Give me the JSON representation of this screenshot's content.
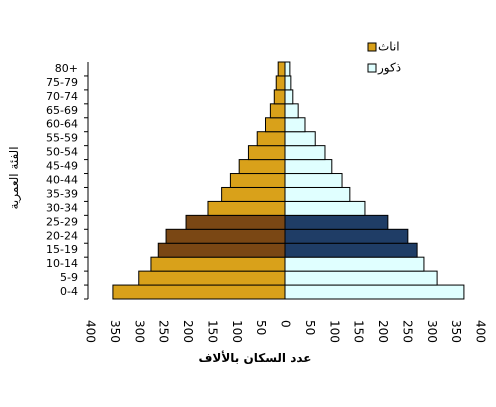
{
  "chart_data": {
    "type": "pyramid",
    "x_label": "عدد السكان بالألاف",
    "y_label": "الفئة العمرية",
    "categories": [
      "0-4",
      "5-9",
      "10-14",
      "15-19",
      "20-24",
      "25-29",
      "30-34",
      "35-39",
      "40-44",
      "45-49",
      "50-54",
      "55-59",
      "60-64",
      "65-69",
      "70-74",
      "75-79",
      "80+"
    ],
    "series": [
      {
        "name": "اناث",
        "side": "left",
        "color": "#d9a11a",
        "colors": [
          "#d9a11a",
          "#d9a11a",
          "#d9a11a",
          "#7a4714",
          "#7a4714",
          "#7a4714",
          "#d9a11a",
          "#d9a11a",
          "#d9a11a",
          "#d9a11a",
          "#d9a11a",
          "#d9a11a",
          "#d9a11a",
          "#d9a11a",
          "#d9a11a",
          "#d9a11a",
          "#d9a11a"
        ],
        "values": [
          353,
          300,
          275,
          260,
          244,
          203,
          158,
          130,
          112,
          94,
          75,
          57,
          40,
          30,
          22,
          18,
          14
        ]
      },
      {
        "name": "ذكور",
        "side": "right",
        "color": "#e0ffff",
        "colors": [
          "#e0ffff",
          "#e0ffff",
          "#e0ffff",
          "#1f3d66",
          "#1f3d66",
          "#1f3d66",
          "#e0ffff",
          "#e0ffff",
          "#e0ffff",
          "#e0ffff",
          "#e0ffff",
          "#e0ffff",
          "#e0ffff",
          "#e0ffff",
          "#e0ffff",
          "#e0ffff",
          "#e0ffff"
        ],
        "values": [
          367,
          312,
          285,
          271,
          252,
          211,
          164,
          133,
          117,
          96,
          82,
          62,
          41,
          27,
          16,
          12,
          10
        ]
      }
    ],
    "xlim": [
      0,
      400
    ],
    "xticks_left": [
      400,
      350,
      300,
      250,
      200,
      150,
      100,
      50
    ],
    "xticks_right": [
      0,
      50,
      100,
      150,
      200,
      250,
      300,
      350,
      400
    ],
    "left_tick_color": "#e00000",
    "legend": "top-right"
  }
}
